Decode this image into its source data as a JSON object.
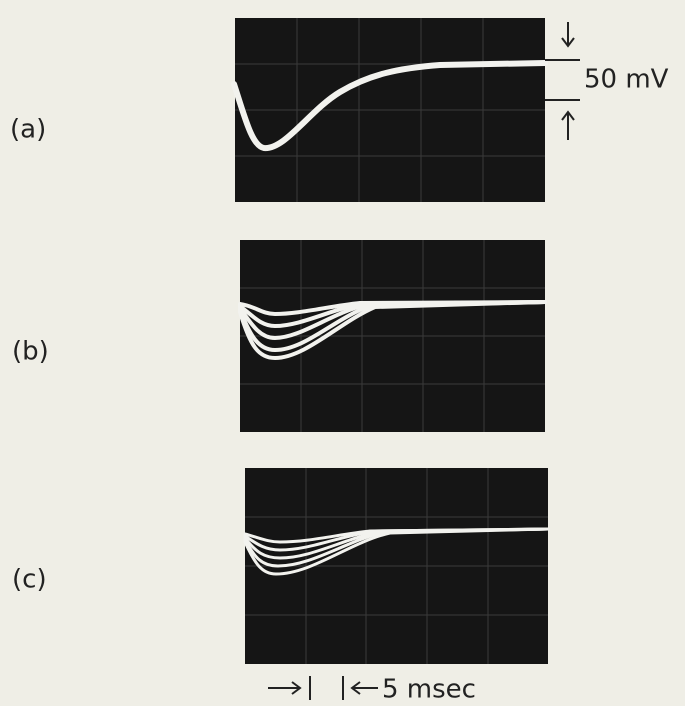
{
  "panels": [
    {
      "label": "(a)"
    },
    {
      "label": "(b)"
    },
    {
      "label": "(c)"
    }
  ],
  "scale_bars": {
    "voltage": "50 mV",
    "time": "5 msec"
  }
}
